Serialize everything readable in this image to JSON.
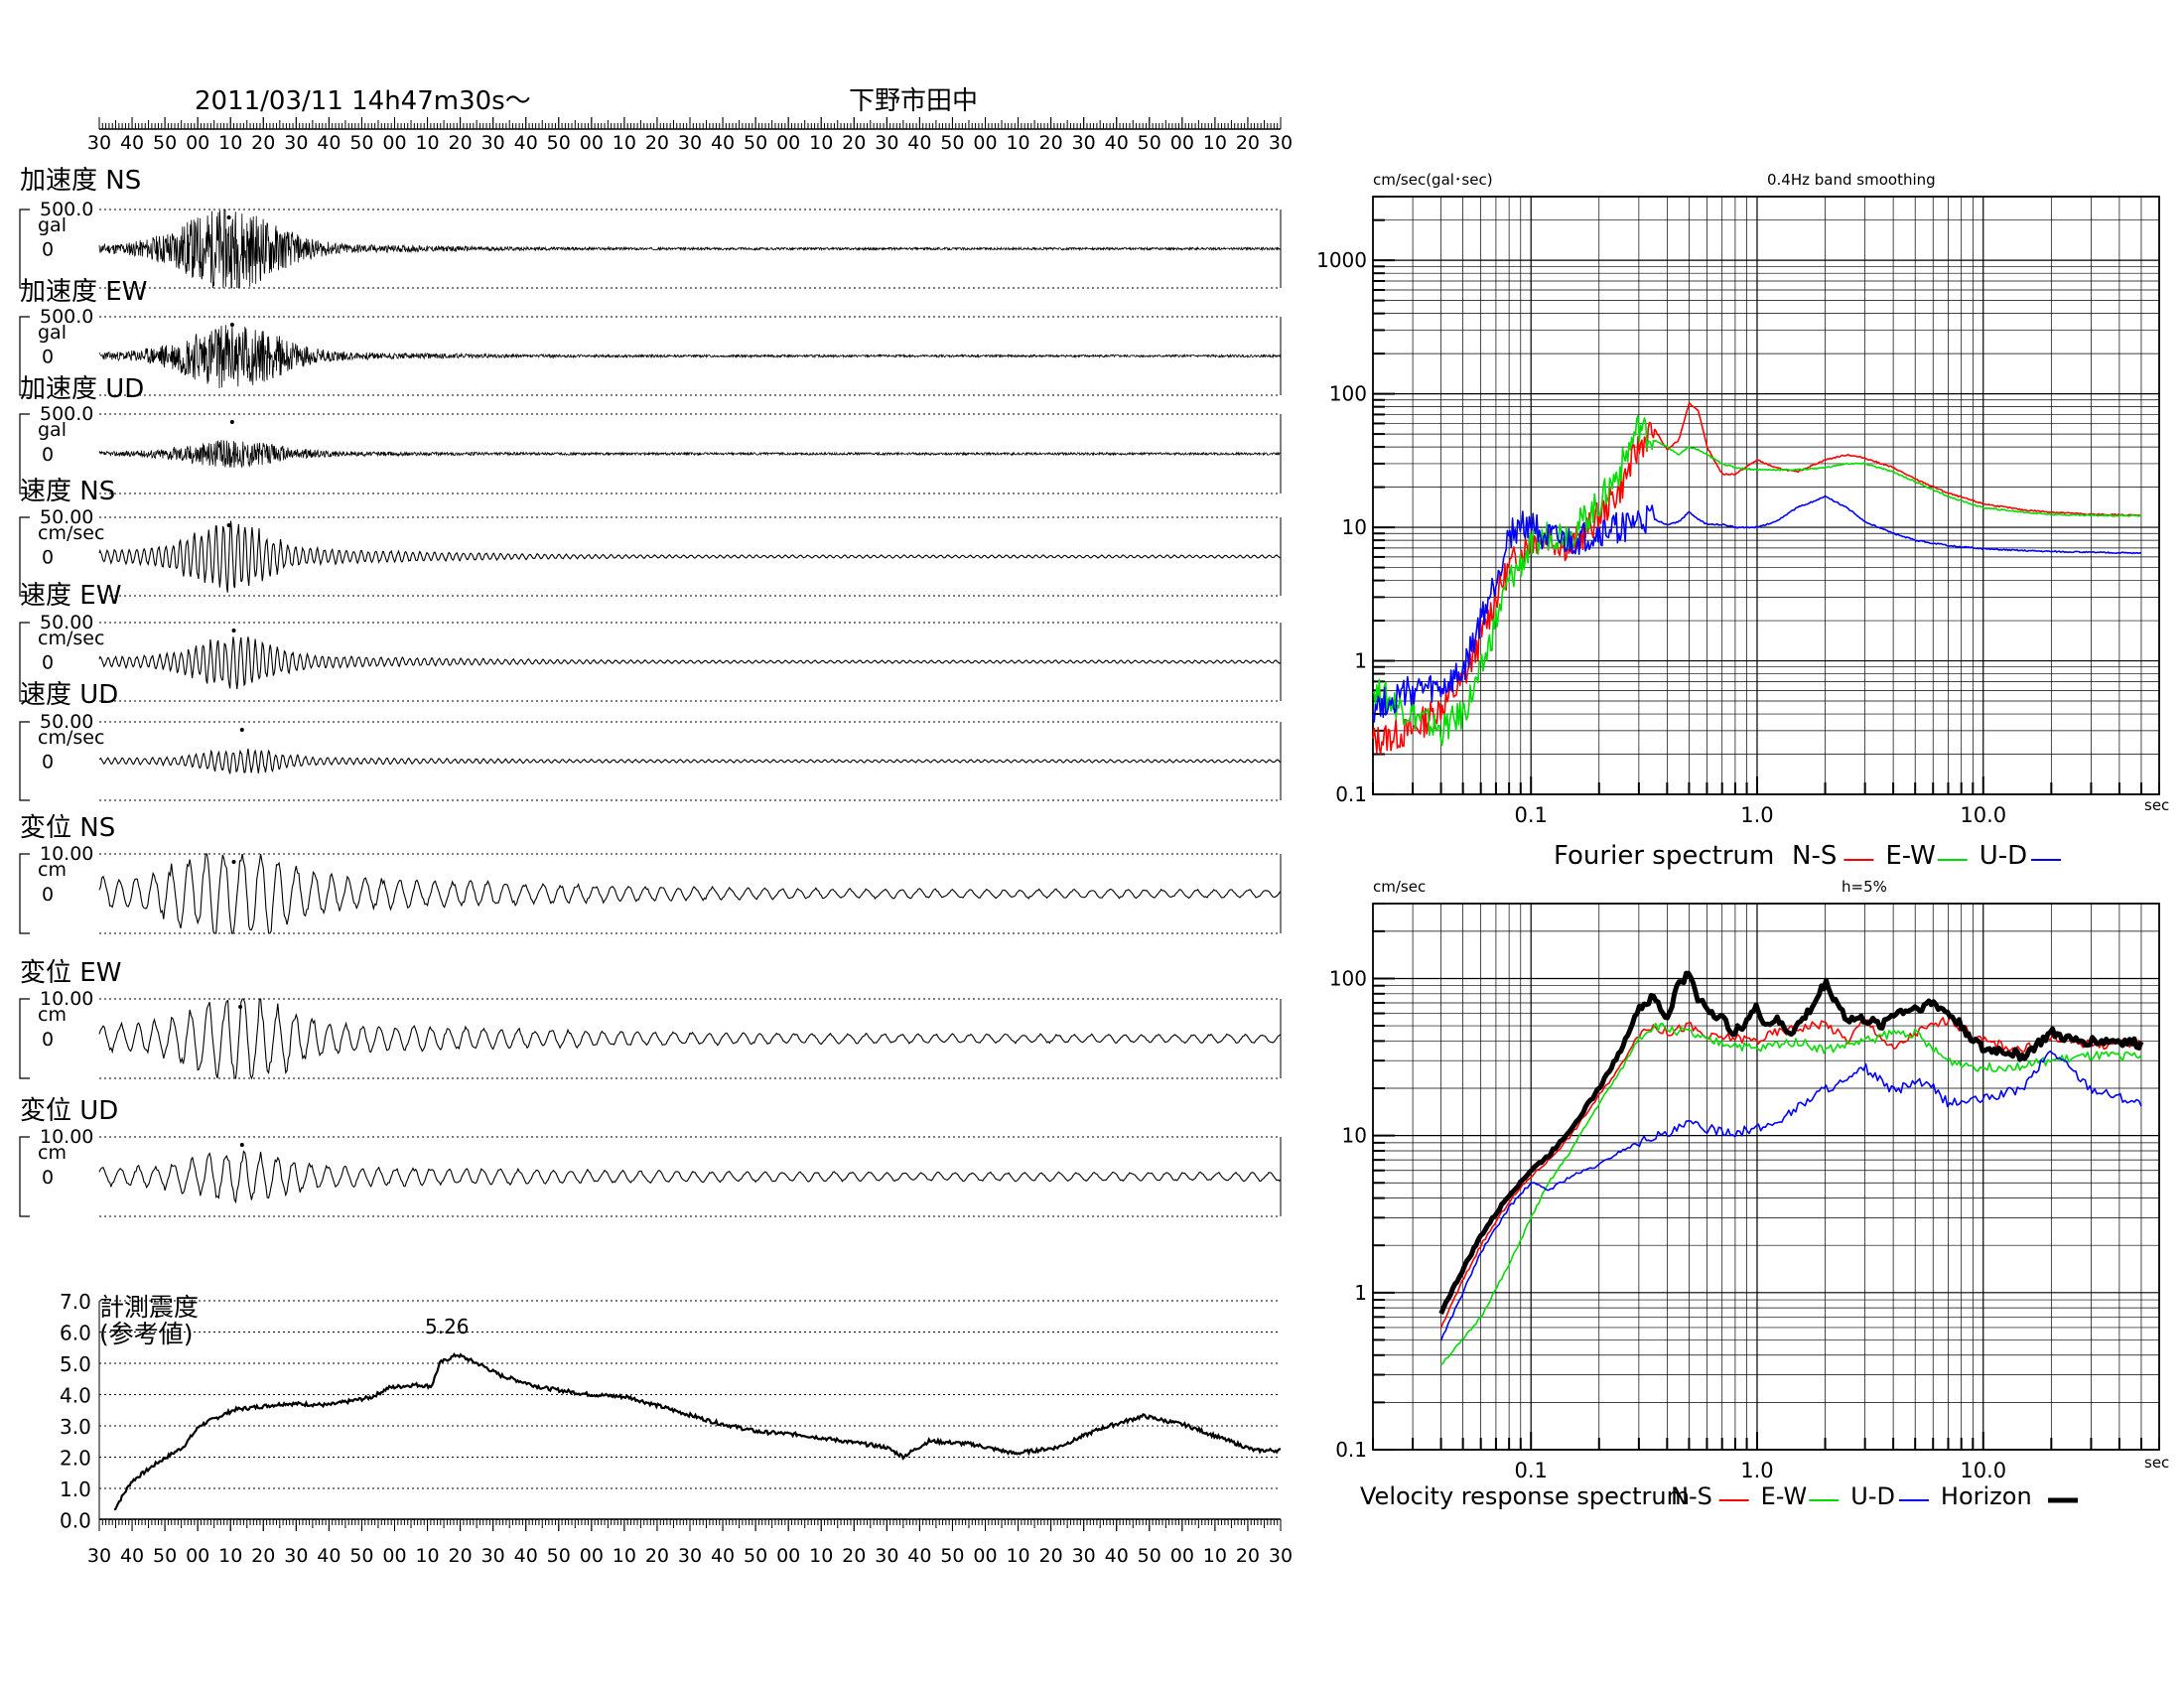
{
  "header": {
    "datetime": "2011/03/11  14h47m30s〜",
    "station": "下野市田中"
  },
  "time_axis_labels": [
    "30",
    "40",
    "50",
    "00",
    "10",
    "20",
    "30",
    "40",
    "50",
    "00",
    "10",
    "20",
    "30",
    "40",
    "50",
    "00",
    "10",
    "20",
    "30",
    "40",
    "50",
    "00",
    "10",
    "20",
    "30",
    "40",
    "50",
    "00",
    "10",
    "20",
    "30",
    "40",
    "50",
    "00",
    "10",
    "20",
    "30"
  ],
  "waveforms": [
    {
      "label": "加速度 NS",
      "max": "500.0",
      "unit": "gal",
      "zero": "0",
      "kind": "acc",
      "amp": 0.95,
      "peak_t": 9.5,
      "seed": 11
    },
    {
      "label": "加速度 EW",
      "max": "500.0",
      "unit": "gal",
      "zero": "0",
      "kind": "acc",
      "amp": 0.75,
      "peak_t": 10.5,
      "seed": 23
    },
    {
      "label": "加速度 UD",
      "max": "500.0",
      "unit": "gal",
      "zero": "0",
      "kind": "acc",
      "amp": 0.3,
      "peak_t": 10.5,
      "seed": 37
    },
    {
      "label": "速度 NS",
      "max": "50.00",
      "unit": "cm/sec",
      "zero": "0",
      "kind": "vel",
      "amp": 0.75,
      "peak_t": 9.5,
      "seed": 41
    },
    {
      "label": "速度 EW",
      "max": "50.00",
      "unit": "cm/sec",
      "zero": "0",
      "kind": "vel",
      "amp": 0.55,
      "peak_t": 11.0,
      "seed": 53
    },
    {
      "label": "速度 UD",
      "max": "50.00",
      "unit": "cm/sec",
      "zero": "0",
      "kind": "vel",
      "amp": 0.25,
      "peak_t": 13.5,
      "seed": 67
    },
    {
      "label": "変位 NS",
      "max": "10.00",
      "unit": "cm",
      "zero": "0",
      "kind": "dis",
      "amp": 1.0,
      "peak_t": 11.0,
      "seed": 71
    },
    {
      "label": "変位 EW",
      "max": "10.00",
      "unit": "cm",
      "zero": "0",
      "kind": "dis",
      "amp": 0.85,
      "peak_t": 13.0,
      "seed": 83
    },
    {
      "label": "変位 UD",
      "max": "10.00",
      "unit": "cm",
      "zero": "0",
      "kind": "dis",
      "amp": 0.45,
      "peak_t": 13.5,
      "seed": 97
    }
  ],
  "intensity": {
    "label_line1": "計測震度",
    "label_line2": "(参考値)",
    "peak_label": "5.26",
    "y_ticks": [
      "7.0",
      "6.0",
      "5.0",
      "4.0",
      "3.0",
      "2.0",
      "1.0",
      "0.0"
    ]
  },
  "chart_data": [
    {
      "type": "line",
      "title": "0.4Hz band smoothing",
      "ylabel": "cm/sec(gal･sec)",
      "xlabel": "sec",
      "x_scale": "log",
      "y_scale": "log",
      "xlim": [
        0.02,
        60
      ],
      "ylim": [
        0.1,
        3000
      ],
      "x_ticks": [
        "0.1",
        "1.0",
        "10.0"
      ],
      "y_ticks": [
        "0.1",
        "1",
        "10",
        "100",
        "1000"
      ],
      "legend_title": "Fourier spectrum",
      "series": [
        {
          "name": "N-S",
          "color": "#ff0000",
          "x": [
            0.02,
            0.03,
            0.04,
            0.05,
            0.06,
            0.07,
            0.08,
            0.1,
            0.12,
            0.15,
            0.2,
            0.25,
            0.3,
            0.35,
            0.4,
            0.45,
            0.5,
            0.55,
            0.6,
            0.7,
            0.8,
            1.0,
            1.2,
            1.5,
            2.0,
            2.5,
            3.0,
            4.0,
            5.0,
            7.0,
            10,
            15,
            20,
            30,
            50
          ],
          "y": [
            0.25,
            0.3,
            0.45,
            0.7,
            1.5,
            3,
            5,
            8,
            8.5,
            7,
            12,
            20,
            40,
            55,
            38,
            45,
            85,
            75,
            40,
            25,
            25,
            32,
            28,
            26,
            32,
            35,
            33,
            28,
            23,
            18,
            15,
            13.5,
            13,
            12.5,
            12.3
          ]
        },
        {
          "name": "E-W",
          "color": "#00dd00",
          "x": [
            0.02,
            0.03,
            0.04,
            0.05,
            0.06,
            0.07,
            0.08,
            0.1,
            0.12,
            0.15,
            0.2,
            0.25,
            0.3,
            0.35,
            0.4,
            0.45,
            0.5,
            0.55,
            0.6,
            0.7,
            0.8,
            1.0,
            1.2,
            1.5,
            2.0,
            2.5,
            3.0,
            4.0,
            5.0,
            7.0,
            10,
            15,
            20,
            30,
            50
          ],
          "y": [
            0.6,
            0.4,
            0.3,
            0.4,
            0.8,
            2,
            4,
            7,
            9,
            9,
            15,
            28,
            58,
            45,
            40,
            35,
            40,
            38,
            35,
            30,
            28,
            27,
            27,
            27,
            28,
            30,
            30,
            26,
            22,
            17,
            14,
            13,
            12.5,
            12.3,
            12.2
          ]
        },
        {
          "name": "U-D",
          "color": "#0000ff",
          "x": [
            0.02,
            0.03,
            0.04,
            0.05,
            0.06,
            0.07,
            0.08,
            0.1,
            0.12,
            0.15,
            0.2,
            0.25,
            0.3,
            0.35,
            0.4,
            0.45,
            0.5,
            0.55,
            0.6,
            0.7,
            0.8,
            1.0,
            1.2,
            1.5,
            2.0,
            2.5,
            3.0,
            4.0,
            5.0,
            7.0,
            10,
            15,
            20,
            30,
            50
          ],
          "y": [
            0.45,
            0.6,
            0.6,
            0.8,
            2,
            4,
            9,
            11,
            8,
            7.5,
            9,
            10,
            11,
            11.5,
            10.5,
            11,
            13,
            11.5,
            10.5,
            10.5,
            10,
            10,
            11,
            14,
            17,
            14,
            11,
            9,
            8,
            7.3,
            6.9,
            6.7,
            6.6,
            6.5,
            6.4
          ]
        }
      ]
    },
    {
      "type": "line",
      "title": "h=5%",
      "ylabel": "cm/sec",
      "xlabel": "sec",
      "x_scale": "log",
      "y_scale": "log",
      "xlim": [
        0.02,
        60
      ],
      "ylim": [
        0.1,
        300
      ],
      "x_ticks": [
        "0.1",
        "1.0",
        "10.0"
      ],
      "y_ticks": [
        "0.1",
        "1",
        "10",
        "100"
      ],
      "legend_title": "Velocity response spectrum",
      "series": [
        {
          "name": "N-S",
          "color": "#ff0000",
          "x": [
            0.04,
            0.05,
            0.06,
            0.08,
            0.1,
            0.12,
            0.15,
            0.2,
            0.25,
            0.3,
            0.35,
            0.4,
            0.5,
            0.6,
            0.8,
            1.0,
            1.2,
            1.5,
            2.0,
            2.5,
            3.0,
            4.0,
            5.0,
            6.0,
            7.0,
            10,
            15,
            20,
            30,
            50
          ],
          "y": [
            0.6,
            1.2,
            2,
            3.8,
            5.5,
            7,
            10,
            18,
            28,
            45,
            50,
            45,
            50,
            42,
            42,
            40,
            45,
            48,
            52,
            40,
            55,
            35,
            45,
            50,
            55,
            40,
            35,
            42,
            38,
            38
          ]
        },
        {
          "name": "E-W",
          "color": "#00dd00",
          "x": [
            0.04,
            0.05,
            0.06,
            0.08,
            0.1,
            0.12,
            0.15,
            0.2,
            0.25,
            0.3,
            0.35,
            0.4,
            0.5,
            0.6,
            0.8,
            1.0,
            1.2,
            1.5,
            2.0,
            2.5,
            3.0,
            4.0,
            5.0,
            6.0,
            7.0,
            10,
            15,
            20,
            30,
            50
          ],
          "y": [
            0.35,
            0.5,
            0.7,
            1.5,
            3,
            5,
            8,
            16,
            26,
            42,
            50,
            48,
            45,
            40,
            38,
            35,
            38,
            40,
            35,
            38,
            40,
            45,
            45,
            35,
            30,
            27,
            28,
            30,
            32,
            32
          ]
        },
        {
          "name": "U-D",
          "color": "#0000ff",
          "x": [
            0.04,
            0.05,
            0.06,
            0.08,
            0.1,
            0.12,
            0.15,
            0.2,
            0.25,
            0.3,
            0.35,
            0.4,
            0.5,
            0.6,
            0.8,
            1.0,
            1.2,
            1.5,
            2.0,
            2.5,
            3.0,
            4.0,
            5.0,
            6.0,
            7.0,
            10,
            15,
            20,
            30,
            50
          ],
          "y": [
            0.5,
            1,
            1.8,
            3.5,
            5,
            4.5,
            5.5,
            6.5,
            8,
            9,
            10,
            10,
            12,
            11,
            10.5,
            11,
            12,
            15,
            20,
            22,
            27,
            19,
            22,
            20,
            16,
            17,
            20,
            35,
            20,
            16
          ]
        },
        {
          "name": "Horizon",
          "color": "#000000",
          "x": [
            0.04,
            0.05,
            0.06,
            0.08,
            0.1,
            0.12,
            0.15,
            0.2,
            0.25,
            0.3,
            0.35,
            0.4,
            0.45,
            0.5,
            0.55,
            0.6,
            0.7,
            0.8,
            0.9,
            1.0,
            1.1,
            1.2,
            1.4,
            1.6,
            1.8,
            2.0,
            2.2,
            2.5,
            3.0,
            3.5,
            4.0,
            5.0,
            6.0,
            7.0,
            8.0,
            10,
            12,
            15,
            20,
            25,
            30,
            40,
            50
          ],
          "y": [
            0.75,
            1.4,
            2.3,
            4.2,
            6,
            7.5,
            11,
            20,
            35,
            65,
            75,
            55,
            95,
            105,
            75,
            65,
            55,
            45,
            55,
            65,
            50,
            55,
            45,
            55,
            70,
            95,
            75,
            55,
            55,
            50,
            60,
            65,
            70,
            60,
            50,
            35,
            35,
            32,
            45,
            40,
            40,
            40,
            38
          ]
        }
      ]
    }
  ]
}
